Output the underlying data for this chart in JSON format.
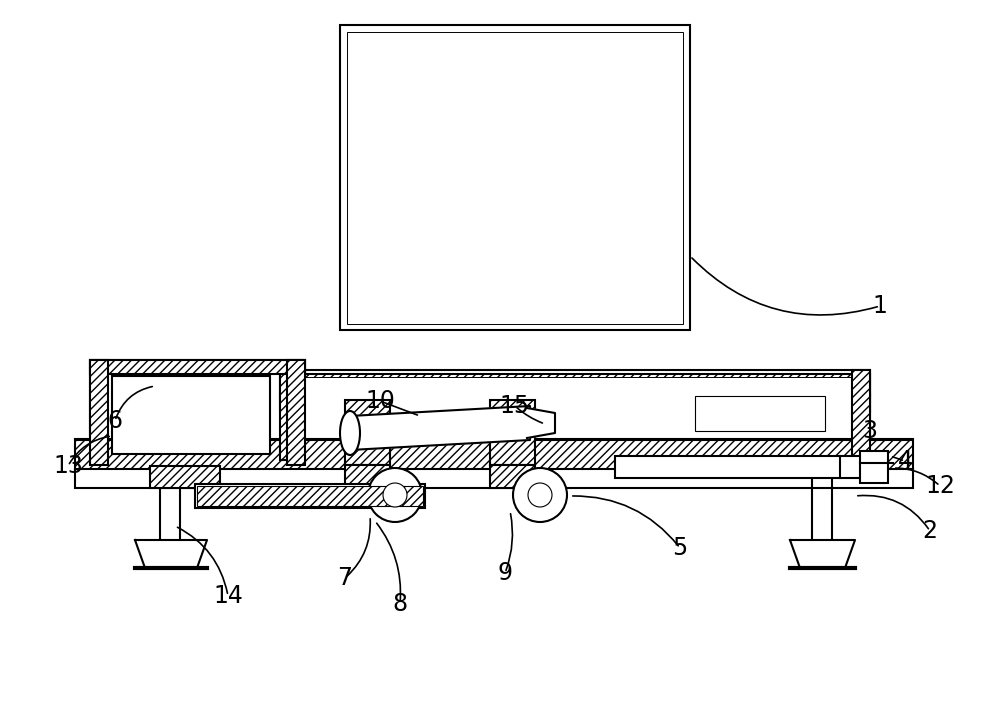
{
  "bg_color": "#ffffff",
  "lc": "#000000",
  "lw": 1.5,
  "fs": 17,
  "figsize": [
    10.0,
    7.26
  ],
  "dpi": 100
}
